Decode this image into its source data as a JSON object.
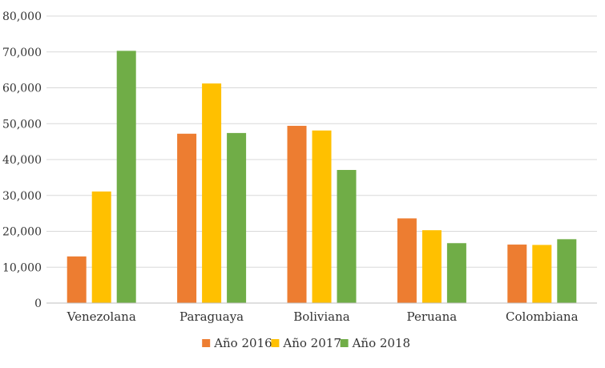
{
  "chart_data": {
    "type": "bar",
    "categories": [
      "Venezolana",
      "Paraguaya",
      "Boliviana",
      "Peruana",
      "Colombiana"
    ],
    "series": [
      {
        "name": "Año 2016",
        "color": "#ED7D31",
        "values": [
          13000,
          47200,
          49400,
          23600,
          16300
        ]
      },
      {
        "name": "Año 2017",
        "color": "#FFC000",
        "values": [
          31100,
          61200,
          48100,
          20300,
          16200
        ]
      },
      {
        "name": "Año 2018",
        "color": "#70AD47",
        "values": [
          70300,
          47400,
          37100,
          16700,
          17800
        ]
      }
    ],
    "y_ticks": [
      "0",
      "10,000",
      "20,000",
      "30,000",
      "40,000",
      "50,000",
      "60,000",
      "70,000",
      "80,000"
    ],
    "ylim": [
      0,
      80000
    ],
    "y_step": 10000,
    "grid": true,
    "legend": "bottom"
  }
}
